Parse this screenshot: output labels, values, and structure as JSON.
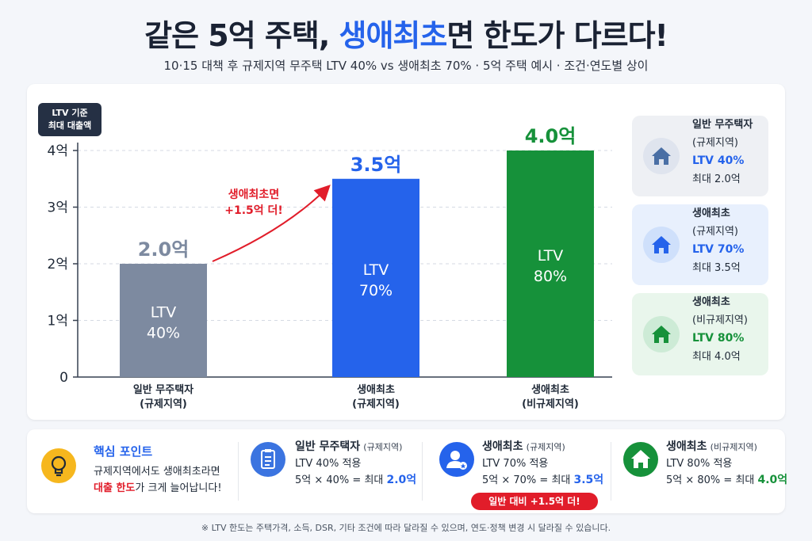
{
  "title": {
    "part1": "같은 5억 주택, ",
    "highlight": "생애최초",
    "part2": "면 한도가 다르다!"
  },
  "subtitle": "10·15 대책 후 규제지역 무주택 LTV 40% vs 생애최초 70% · 5억 주택 예시 · 조건·연도별 상이",
  "y_badge": {
    "line1": "LTV 기준",
    "line2": "최대 대출액"
  },
  "colors": {
    "general": "#7d8aa0",
    "first_regulated": "#2563eb",
    "first_nonregulated": "#16913a",
    "arrow": "#e11d2a"
  },
  "chart_data": {
    "type": "bar",
    "categories": [
      "일반 무주택자 (규제지역)",
      "생애최초 (규제지역)",
      "생애최초 (비규제지역)"
    ],
    "category_lines": [
      [
        "일반 무주택자",
        "(규제지역)"
      ],
      [
        "생애최초",
        "(규제지역)"
      ],
      [
        "생애최초",
        "(비규제지역)"
      ]
    ],
    "values": [
      2.0,
      3.5,
      4.0
    ],
    "value_labels": [
      "2.0억",
      "3.5억",
      "4.0억"
    ],
    "bar_inner_labels": [
      [
        "LTV",
        "40%"
      ],
      [
        "LTV",
        "70%"
      ],
      [
        "LTV",
        "80%"
      ]
    ],
    "yticks": [
      0,
      1,
      2,
      3,
      4
    ],
    "ytick_labels": [
      "0",
      "1억",
      "2억",
      "3억",
      "4억"
    ],
    "ylim": [
      0,
      4
    ],
    "grid": true,
    "annotation": {
      "line1": "생애최초면",
      "line2": "+1.5억 더!"
    }
  },
  "cards": [
    {
      "title": "일반 무주택자",
      "region": "(규제지역)",
      "ltv": "LTV 40%",
      "max": "최대 2.0억",
      "icon": "house-icon",
      "bg": "#eef0f4",
      "circle": "#dfe4ee",
      "fg": "#4a6fa5",
      "ltv_color": "#2563eb"
    },
    {
      "title": "생애최초",
      "region": "(규제지역)",
      "ltv": "LTV 70%",
      "max": "최대 3.5억",
      "icon": "house-icon",
      "bg": "#e8f0fd",
      "circle": "#cfe0fb",
      "fg": "#2563eb",
      "ltv_color": "#2563eb"
    },
    {
      "title": "생애최초",
      "region": "(비규제지역)",
      "ltv": "LTV 80%",
      "max": "최대 4.0억",
      "icon": "house-icon",
      "bg": "#e9f6ec",
      "circle": "#cdebd6",
      "fg": "#16913a",
      "ltv_color": "#16913a"
    }
  ],
  "key_point": {
    "title": "핵심 포인트",
    "line1": "규제지역에서도 생애최초라면",
    "line2_red": "대출 한도",
    "line2_rest": "가 크게 늘어납니다!",
    "icon": "lightbulb-icon"
  },
  "summaries": [
    {
      "title": "일반 무주택자",
      "region": "(규제지역)",
      "apply": "LTV 40% 적용",
      "calc": "5억 × 40% = 최대 ",
      "result": "2.0억",
      "icon": "clipboard-icon"
    },
    {
      "title": "생애최초",
      "region": "(규제지역)",
      "apply": "LTV 70% 적용",
      "calc": "5억 × 70% = 최대 ",
      "result": "3.5억",
      "icon": "user-star-icon",
      "badge": "일반 대비 +1.5억 더!"
    },
    {
      "title": "생애최초",
      "region": "(비규제지역)",
      "apply": "LTV 80% 적용",
      "calc": "5억 × 80% = 최대 ",
      "result": "4.0억",
      "icon": "house-icon"
    }
  ],
  "footnote": "※ LTV 한도는 주택가격, 소득, DSR, 기타 조건에 따라 달라질 수 있으며, 연도·정책 변경 시 달라질 수 있습니다."
}
